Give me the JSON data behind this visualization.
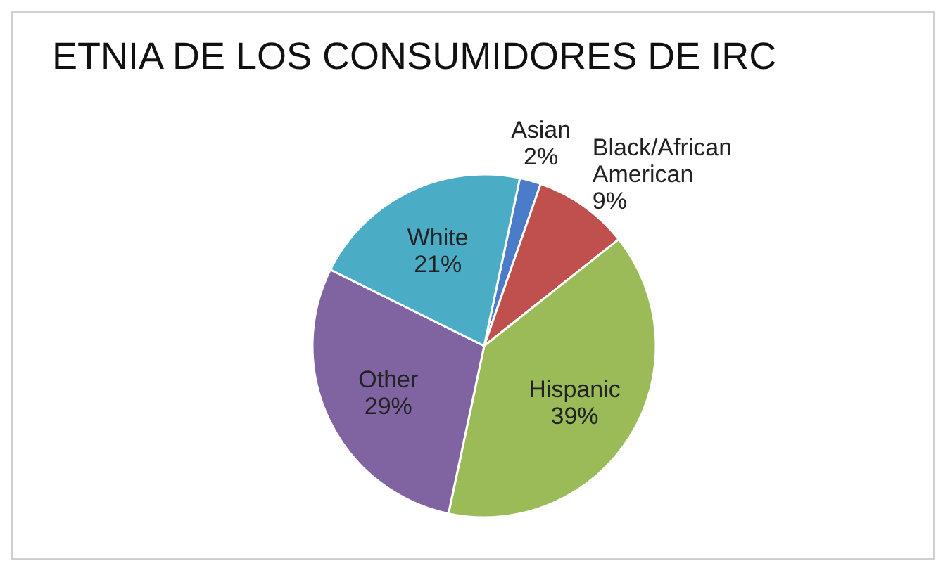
{
  "chart_data": {
    "type": "pie",
    "title": "ETNIA DE LOS CONSUMIDORES DE IRC",
    "categories": [
      "Asian",
      "Black/African American",
      "Hispanic",
      "Other",
      "White"
    ],
    "values": [
      2,
      9,
      39,
      29,
      21
    ],
    "value_labels": [
      "2%",
      "9%",
      "39%",
      "29%",
      "21%"
    ],
    "colors": [
      "#4a7cc9",
      "#c0504d",
      "#9bbb59",
      "#8064a2",
      "#4bacc6"
    ],
    "legend": false
  }
}
